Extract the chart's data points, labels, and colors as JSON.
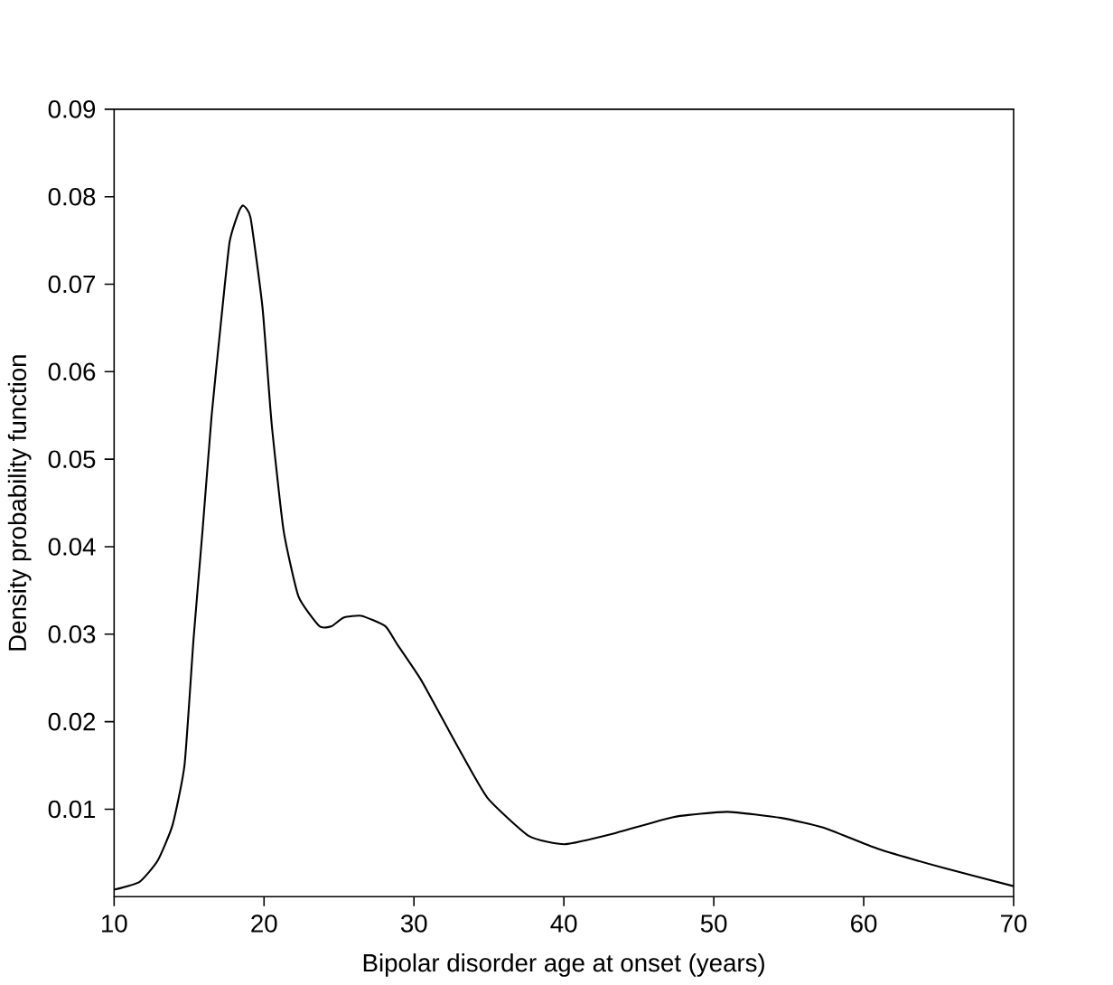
{
  "chart_data": {
    "type": "line",
    "xlabel": "Bipolar disorder age at onset (years)",
    "ylabel": "Density probability function",
    "x": [
      10,
      11.7,
      12.9,
      13.9,
      14.7,
      15.3,
      15.9,
      16.5,
      17.1,
      17.7,
      18.3,
      18.6,
      19.1,
      19.9,
      20.5,
      21.3,
      22.3,
      23.7,
      24.5,
      25.3,
      26.5,
      28.1,
      28.9,
      30.5,
      32.9,
      34.9,
      37.7,
      40.1,
      43.3,
      47.3,
      50.9,
      54.5,
      57.3,
      60.9,
      65.3,
      70
    ],
    "values": [
      0.0008,
      0.0017,
      0.0041,
      0.0082,
      0.0151,
      0.0295,
      0.0419,
      0.0549,
      0.0652,
      0.0748,
      0.0782,
      0.079,
      0.0776,
      0.0673,
      0.0542,
      0.0419,
      0.0343,
      0.0309,
      0.0309,
      0.0319,
      0.0321,
      0.0309,
      0.0288,
      0.0247,
      0.0172,
      0.0113,
      0.0069,
      0.006,
      0.0072,
      0.0091,
      0.0097,
      0.009,
      0.0079,
      0.0055,
      0.0033,
      0.0012
    ],
    "color": "#000000",
    "line_style": "solid",
    "marker": "none",
    "grid": false,
    "xlim": [
      10,
      70
    ],
    "ylim": [
      0,
      0.09
    ],
    "xticks": [
      10,
      20,
      30,
      40,
      50,
      60,
      70
    ],
    "yticks": [
      0.01,
      0.02,
      0.03,
      0.04,
      0.05,
      0.06,
      0.07,
      0.08,
      0.09
    ]
  }
}
